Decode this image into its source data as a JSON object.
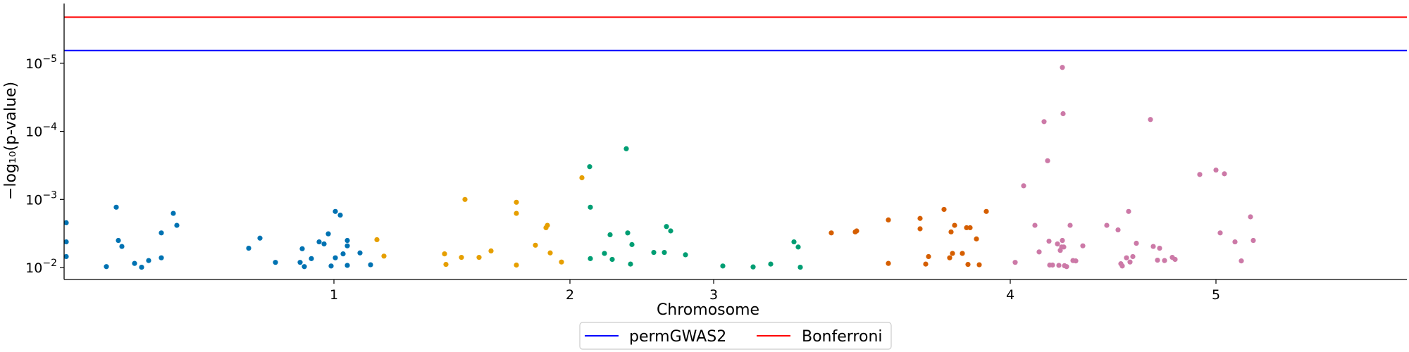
{
  "chart_data": {
    "type": "scatter",
    "xlabel": "Chromosome",
    "ylabel": "−log₁₀(p-value)",
    "y_scale": "log",
    "y_inverted": true,
    "ylim": [
      0.014,
      5e-07
    ],
    "x_ticks": [
      {
        "label": "1",
        "pos": 383
      },
      {
        "label": "2",
        "pos": 718
      },
      {
        "label": "3",
        "pos": 922
      },
      {
        "label": "4",
        "pos": 1343
      },
      {
        "label": "5",
        "pos": 1635
      }
    ],
    "y_ticks": [
      {
        "label": "10",
        "exp": "−2",
        "value": 0.01
      },
      {
        "label": "10",
        "exp": "−3",
        "value": 0.001
      },
      {
        "label": "10",
        "exp": "−4",
        "value": 0.0001
      },
      {
        "label": "10",
        "exp": "−5",
        "value": 1e-05
      }
    ],
    "thresholds": [
      {
        "name": "permGWAS2",
        "color": "#0000ff",
        "value": 6.5e-06
      },
      {
        "name": "Bonferroni",
        "color": "#ff0000",
        "value": 2.1e-06
      }
    ],
    "legend": {
      "placement": "bottom-center"
    },
    "series": [
      {
        "chromosome": "1",
        "color": "#0072b2",
        "points": [
          [
            3,
            0.0022
          ],
          [
            3,
            0.0042
          ],
          [
            3,
            0.0069
          ],
          [
            60,
            0.0097
          ],
          [
            74,
            0.0013
          ],
          [
            77,
            0.004
          ],
          [
            82,
            0.0049
          ],
          [
            100,
            0.0087
          ],
          [
            110,
            0.0099
          ],
          [
            120,
            0.0079
          ],
          [
            138,
            0.0072
          ],
          [
            138,
            0.0031
          ],
          [
            155,
            0.0016
          ],
          [
            160,
            0.0024
          ],
          [
            262,
            0.0052
          ],
          [
            278,
            0.0037
          ],
          [
            300,
            0.0084
          ],
          [
            335,
            0.0084
          ],
          [
            338,
            0.0053
          ],
          [
            341,
            0.0097
          ],
          [
            351,
            0.0074
          ],
          [
            362,
            0.0042
          ],
          [
            369,
            0.0045
          ],
          [
            375,
            0.0032
          ],
          [
            379,
            0.0095
          ],
          [
            385,
            0.0072
          ],
          [
            385,
            0.0015
          ],
          [
            392,
            0.0017
          ],
          [
            396,
            0.0063
          ],
          [
            402,
            0.004
          ],
          [
            402,
            0.0048
          ],
          [
            402,
            0.0093
          ],
          [
            420,
            0.0061
          ],
          [
            435,
            0.0091
          ]
        ]
      },
      {
        "chromosome": "2",
        "color": "#e69f00",
        "points": [
          [
            444,
            0.0039
          ],
          [
            454,
            0.0068
          ],
          [
            540,
            0.0063
          ],
          [
            542,
            0.009
          ],
          [
            564,
            0.0071
          ],
          [
            569,
            0.001
          ],
          [
            589,
            0.0071
          ],
          [
            606,
            0.0057
          ],
          [
            642,
            0.0011
          ],
          [
            642,
            0.0016
          ],
          [
            642,
            0.0092
          ],
          [
            669,
            0.0047
          ],
          [
            684,
            0.0026
          ],
          [
            686,
            0.0024
          ],
          [
            690,
            0.0061
          ],
          [
            706,
            0.0083
          ],
          [
            735,
            0.00048
          ]
        ]
      },
      {
        "chromosome": "3",
        "color": "#009e73",
        "points": [
          [
            746,
            0.00033
          ],
          [
            747,
            0.0013
          ],
          [
            747,
            0.0074
          ],
          [
            767,
            0.0062
          ],
          [
            775,
            0.0033
          ],
          [
            778,
            0.0076
          ],
          [
            798,
            0.00018
          ],
          [
            800,
            0.0031
          ],
          [
            804,
            0.0089
          ],
          [
            806,
            0.0046
          ],
          [
            837,
            0.006
          ],
          [
            852,
            0.006
          ],
          [
            855,
            0.0025
          ],
          [
            861,
            0.0029
          ],
          [
            882,
            0.0065
          ],
          [
            935,
            0.0095
          ],
          [
            978,
            0.0098
          ],
          [
            1003,
            0.0089
          ],
          [
            1036,
            0.0042
          ],
          [
            1042,
            0.005
          ],
          [
            1045,
            0.0099
          ]
        ]
      },
      {
        "chromosome": "4",
        "color": "#d55e00",
        "points": [
          [
            1089,
            0.0031
          ],
          [
            1123,
            0.003
          ],
          [
            1125,
            0.0029
          ],
          [
            1170,
            0.002
          ],
          [
            1170,
            0.0087
          ],
          [
            1215,
            0.0019
          ],
          [
            1215,
            0.0027
          ],
          [
            1223,
            0.0089
          ],
          [
            1227,
            0.0069
          ],
          [
            1249,
            0.0014
          ],
          [
            1257,
            0.0072
          ],
          [
            1259,
            0.003
          ],
          [
            1261,
            0.0062
          ],
          [
            1264,
            0.0024
          ],
          [
            1275,
            0.0062
          ],
          [
            1281,
            0.0026
          ],
          [
            1283,
            0.009
          ],
          [
            1286,
            0.0026
          ],
          [
            1295,
            0.0038
          ],
          [
            1299,
            0.0091
          ],
          [
            1309,
            0.0015
          ]
        ]
      },
      {
        "chromosome": "5",
        "color": "#cc79a7",
        "points": [
          [
            1350,
            0.0084
          ],
          [
            1362,
            0.00063
          ],
          [
            1378,
            0.0024
          ],
          [
            1384,
            0.0059
          ],
          [
            1391,
            7.2e-05
          ],
          [
            1396,
            0.00027
          ],
          [
            1398,
            0.0041
          ],
          [
            1399,
            0.0092
          ],
          [
            1403,
            0.0092
          ],
          [
            1410,
            0.0045
          ],
          [
            1412,
            0.0093
          ],
          [
            1414,
            0.0056
          ],
          [
            1416,
            0.005
          ],
          [
            1417,
            0.004
          ],
          [
            1417,
            1.15e-05
          ],
          [
            1418,
            5.5e-05
          ],
          [
            1419,
            0.005
          ],
          [
            1420,
            0.0094
          ],
          [
            1423,
            0.0097
          ],
          [
            1428,
            0.0024
          ],
          [
            1432,
            0.0079
          ],
          [
            1436,
            0.008
          ],
          [
            1446,
            0.0048
          ],
          [
            1480,
            0.0024
          ],
          [
            1496,
            0.0028
          ],
          [
            1500,
            0.0088
          ],
          [
            1502,
            0.0095
          ],
          [
            1508,
            0.0072
          ],
          [
            1511,
            0.0015
          ],
          [
            1513,
            0.0083
          ],
          [
            1517,
            0.0069
          ],
          [
            1522,
            0.0044
          ],
          [
            1542,
            6.7e-05
          ],
          [
            1546,
            0.0049
          ],
          [
            1552,
            0.0078
          ],
          [
            1555,
            0.0052
          ],
          [
            1562,
            0.0079
          ],
          [
            1573,
            0.0071
          ],
          [
            1577,
            0.0076
          ],
          [
            1612,
            0.00043
          ],
          [
            1635,
            0.00037
          ],
          [
            1641,
            0.0031
          ],
          [
            1647,
            0.00042
          ],
          [
            1662,
            0.0042
          ],
          [
            1671,
            0.008
          ],
          [
            1684,
            0.0018
          ],
          [
            1688,
            0.004
          ]
        ]
      }
    ]
  }
}
